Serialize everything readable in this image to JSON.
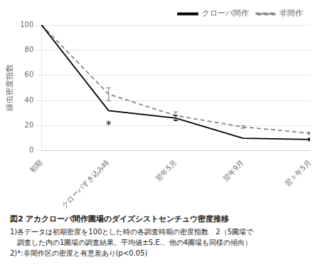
{
  "chart_data": {
    "type": "line",
    "title": "図2  アカクローバ間作圃場のダイズシストセンチュウ密度推移",
    "caption": [
      "1)各データは初期密度を100とした時の各調査時期の密度指数　2（5圃場で",
      "　調査した内の1圃場の調査結果。平均値±S.E.、他の4圃場も同様の傾向）",
      "2)*:非間作区の密度と有意差あり(p<0.05)"
    ],
    "y_label": "線虫密度指数",
    "categories": [
      "初期",
      "クローバすき込み時",
      "翌年5月",
      "翌年9月",
      "翌々年5月"
    ],
    "series": [
      {
        "name": "クローバ間作",
        "color": "#000000",
        "line_style": "solid",
        "marker": "none",
        "values": [
          100,
          32,
          26,
          10,
          9
        ],
        "errors": [
          0,
          0,
          2,
          0,
          1
        ]
      },
      {
        "name": "非間作",
        "color": "#888888",
        "line_style": "dashed",
        "marker": "none",
        "values": [
          100,
          45,
          28,
          19,
          14
        ],
        "errors": [
          0,
          5,
          3,
          1,
          1
        ]
      }
    ],
    "annotations": [
      {
        "x": "クローバすき込み時",
        "y": 24,
        "text": "*"
      }
    ],
    "ylim": [
      0,
      100
    ],
    "yticks": [
      0,
      20,
      40,
      60,
      80,
      100
    ],
    "grid": true,
    "legend": "upper right"
  }
}
